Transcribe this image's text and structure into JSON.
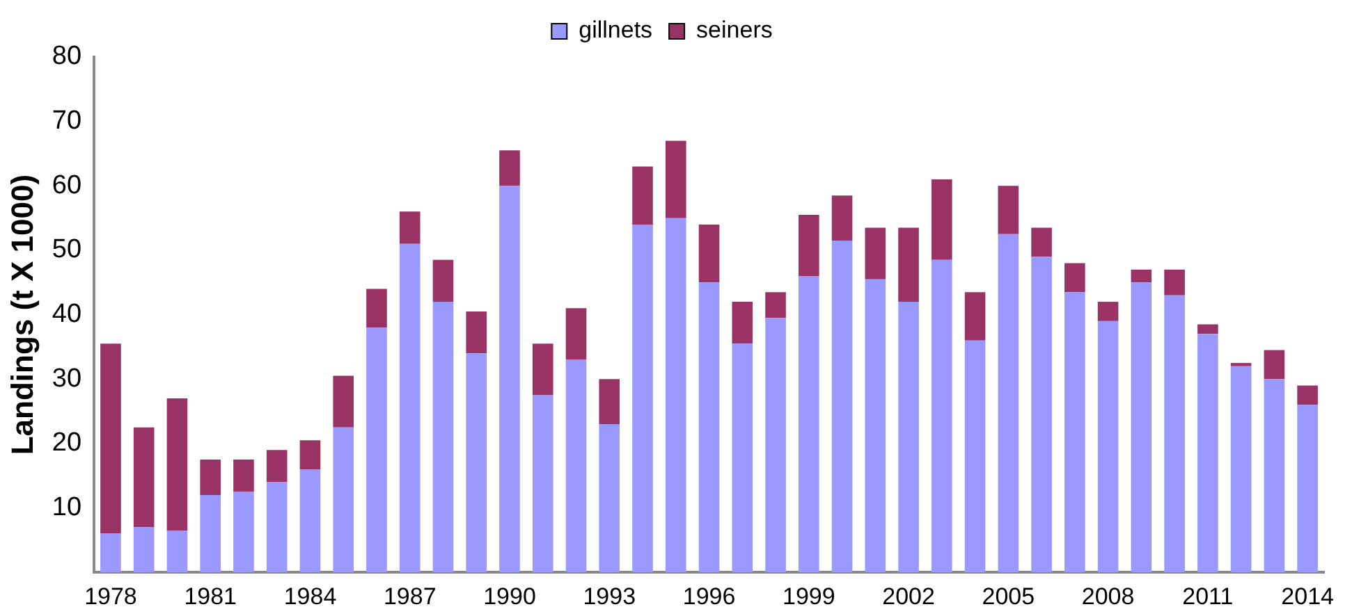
{
  "chart_data": {
    "type": "bar",
    "stacked": true,
    "ylabel": "Landings (t X 1000)",
    "categories": [
      "1978",
      null,
      null,
      "1981",
      null,
      null,
      "1984",
      null,
      null,
      "1987",
      null,
      null,
      "1990",
      null,
      null,
      "1993",
      null,
      null,
      "1996",
      null,
      null,
      "1999",
      null,
      null,
      "2002",
      null,
      null,
      "2005",
      null,
      null,
      "2008",
      null,
      null,
      "2011",
      null,
      null,
      "2014"
    ],
    "series": [
      {
        "name": "gillnets",
        "color": "#9999ff",
        "values": [
          6,
          7,
          6.5,
          12,
          12.5,
          14,
          16,
          22.5,
          38,
          51,
          42,
          34,
          60,
          27.5,
          33,
          23,
          54,
          55,
          45,
          35.5,
          39.5,
          46,
          51.5,
          45.5,
          42,
          48.5,
          36,
          52.5,
          49,
          43.5,
          39,
          45,
          43,
          37,
          32,
          30,
          26
        ]
      },
      {
        "name": "seiners",
        "color": "#993366",
        "values": [
          29.5,
          15.5,
          20.5,
          5.5,
          5,
          5,
          4.5,
          8,
          6,
          5,
          6.5,
          6.5,
          5.5,
          8,
          8,
          7,
          9,
          12,
          9,
          6.5,
          4,
          9.5,
          7,
          8,
          11.5,
          12.5,
          7.5,
          7.5,
          4.5,
          4.5,
          3,
          2,
          4,
          1.5,
          0.5,
          4.5,
          3
        ]
      }
    ],
    "ylim": [
      0,
      80
    ],
    "yticks": [
      {
        "value": 0,
        "label": null
      },
      10,
      20,
      30,
      40,
      50,
      60,
      70,
      80
    ],
    "grid": false,
    "legend": "top"
  }
}
